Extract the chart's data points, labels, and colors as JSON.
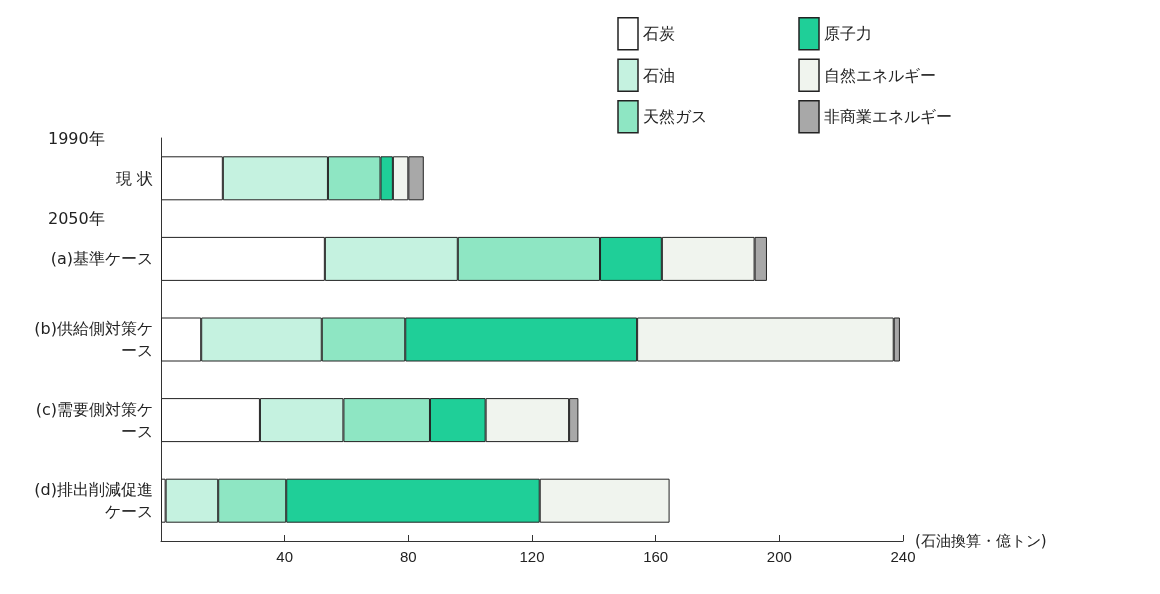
{
  "chart_data": {
    "type": "bar",
    "orientation": "horizontal",
    "stacked": true,
    "categories": [
      "現 状",
      "(a)基準ケース",
      "(b)供給側対策ケース",
      "(c)需要側対策ケース",
      "(d)排出削減促進ケース"
    ],
    "series": [
      {
        "name": "石炭",
        "color": "#ffffff",
        "values": [
          20,
          53,
          13,
          32,
          1.5
        ]
      },
      {
        "name": "石油",
        "color": "#c5f2e0",
        "values": [
          34,
          43,
          39,
          27,
          17
        ]
      },
      {
        "name": "天然ガス",
        "color": "#8ee6c3",
        "values": [
          17,
          46,
          27,
          28,
          22
        ]
      },
      {
        "name": "原子力",
        "color": "#1fcf98",
        "values": [
          4,
          20,
          75,
          18,
          82
        ]
      },
      {
        "name": "自然エネルギー",
        "color": "#f0f4ee",
        "values": [
          5,
          30,
          83,
          27,
          42
        ]
      },
      {
        "name": "非商業エネルギー",
        "color": "#a8a8a8",
        "values": [
          5,
          4,
          2,
          3,
          null
        ]
      }
    ],
    "xlim": [
      0,
      240
    ],
    "xticks": [
      {
        "value": 0,
        "label": null
      },
      40,
      80,
      120,
      160,
      200,
      240
    ],
    "xlabel": "(石油換算・億トン)",
    "legend": "top right",
    "grid": false,
    "annotations": [
      "1990年",
      "2050年"
    ]
  }
}
